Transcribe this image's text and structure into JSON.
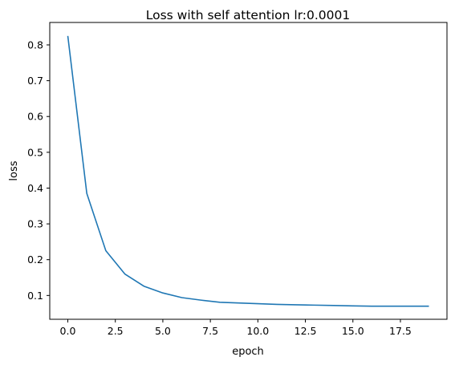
{
  "chart_data": {
    "type": "line",
    "title": "Loss with self attention lr:0.0001",
    "xlabel": "epoch",
    "ylabel": "loss",
    "xlim": [
      -0.95,
      19.95
    ],
    "ylim": [
      0.0335,
      0.8627
    ],
    "x_ticks": [
      0,
      2.5,
      5,
      7.5,
      10,
      12.5,
      15,
      17.5
    ],
    "x_tick_labels": [
      "0.0",
      "2.5",
      "5.0",
      "7.5",
      "10.0",
      "12.5",
      "15.0",
      "17.5"
    ],
    "y_ticks": [
      0.1,
      0.2,
      0.3,
      0.4,
      0.5,
      0.6,
      0.7,
      0.8
    ],
    "y_tick_labels": [
      "0.1",
      "0.2",
      "0.3",
      "0.4",
      "0.5",
      "0.6",
      "0.7",
      "0.8"
    ],
    "grid": false,
    "color": "#1f77b4",
    "x": [
      0,
      1,
      2,
      3,
      4,
      5,
      6,
      7,
      8,
      9,
      10,
      11,
      12,
      13,
      14,
      15,
      16,
      17,
      18,
      19
    ],
    "y": [
      0.825,
      0.385,
      0.225,
      0.16,
      0.126,
      0.107,
      0.094,
      0.087,
      0.081,
      0.079,
      0.077,
      0.075,
      0.074,
      0.073,
      0.072,
      0.071,
      0.07,
      0.07,
      0.07,
      0.07
    ]
  }
}
